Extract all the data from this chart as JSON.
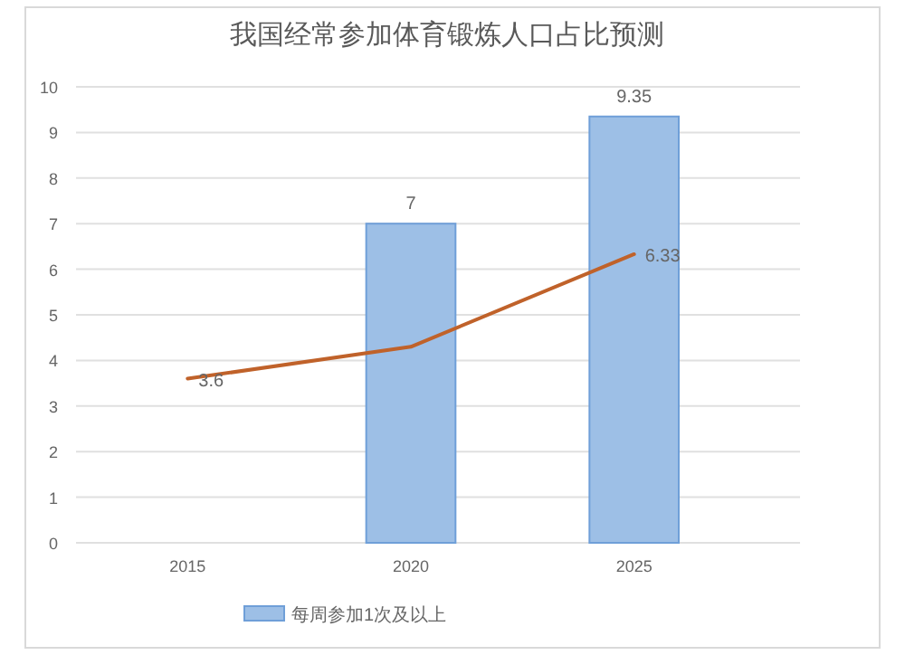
{
  "chart_data": {
    "type": "bar",
    "title": "我国经常参加体育锻炼人口占比预测",
    "categories": [
      "2015",
      "2020",
      "2025"
    ],
    "series": [
      {
        "name": "每周参加1次及以上",
        "color": "#9dbfe6",
        "values": [
          null,
          7,
          9.35
        ],
        "value_labels": [
          null,
          "7",
          "9.35"
        ]
      },
      {
        "type": "line",
        "color": "#c0622a",
        "values": [
          3.6,
          4.3,
          6.33
        ],
        "value_labels": [
          "3.6",
          null,
          "6.33"
        ]
      }
    ],
    "ylim": [
      0,
      10
    ],
    "yticks": [
      0,
      1,
      2,
      3,
      4,
      5,
      6,
      7,
      8,
      9,
      10
    ],
    "grid": "y",
    "legend": "bottom"
  }
}
